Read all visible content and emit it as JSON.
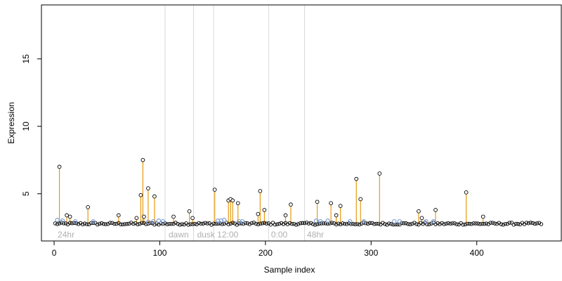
{
  "chart_data": {
    "type": "scatter",
    "title": "",
    "xlabel": "Sample index",
    "ylabel": "Expression",
    "xlim": [
      -12,
      480
    ],
    "ylim": [
      1.5,
      19
    ],
    "x_ticks": [
      0,
      100,
      200,
      300,
      400
    ],
    "y_ticks": [
      5,
      10,
      15
    ],
    "grid": false,
    "legend": "none",
    "baseline": 2.8,
    "colors": {
      "stem": "#e69a10",
      "point_outline": "#000000",
      "blue_point": "#7fa0d8",
      "annotation": "#b0b0b0",
      "divider": "#d9d9d9",
      "axis": "#000000"
    },
    "sections": [
      {
        "label": "24hr",
        "x": 2
      },
      {
        "label": "dawn",
        "x": 107
      },
      {
        "label": "dusk",
        "x": 134
      },
      {
        "label": "12:00",
        "x": 153
      },
      {
        "label": "0:00",
        "x": 204
      },
      {
        "label": "48hr",
        "x": 238
      }
    ],
    "dividers": [
      105,
      132,
      151,
      203,
      237
    ],
    "highlighted_points": [
      {
        "x": 5,
        "y": 7.0
      },
      {
        "x": 12,
        "y": 3.4
      },
      {
        "x": 15,
        "y": 3.3
      },
      {
        "x": 32,
        "y": 4.0
      },
      {
        "x": 61,
        "y": 3.4
      },
      {
        "x": 78,
        "y": 3.2
      },
      {
        "x": 82,
        "y": 4.9
      },
      {
        "x": 84,
        "y": 7.5
      },
      {
        "x": 85,
        "y": 3.3
      },
      {
        "x": 89,
        "y": 5.4
      },
      {
        "x": 95,
        "y": 4.8
      },
      {
        "x": 113,
        "y": 3.3
      },
      {
        "x": 128,
        "y": 3.7
      },
      {
        "x": 131,
        "y": 3.2
      },
      {
        "x": 152,
        "y": 5.3
      },
      {
        "x": 165,
        "y": 4.5
      },
      {
        "x": 167,
        "y": 4.6
      },
      {
        "x": 169,
        "y": 4.5
      },
      {
        "x": 174,
        "y": 4.3
      },
      {
        "x": 193,
        "y": 3.5
      },
      {
        "x": 195,
        "y": 5.2
      },
      {
        "x": 199,
        "y": 3.8
      },
      {
        "x": 219,
        "y": 3.4
      },
      {
        "x": 224,
        "y": 4.2
      },
      {
        "x": 249,
        "y": 4.4
      },
      {
        "x": 262,
        "y": 4.3
      },
      {
        "x": 267,
        "y": 3.4
      },
      {
        "x": 271,
        "y": 4.1
      },
      {
        "x": 286,
        "y": 6.1
      },
      {
        "x": 290,
        "y": 4.6
      },
      {
        "x": 308,
        "y": 6.5
      },
      {
        "x": 345,
        "y": 3.7
      },
      {
        "x": 348,
        "y": 3.2
      },
      {
        "x": 361,
        "y": 3.8
      },
      {
        "x": 390,
        "y": 5.1
      },
      {
        "x": 406,
        "y": 3.3
      }
    ],
    "blue_points": [
      {
        "x": 3,
        "y": 3.05
      },
      {
        "x": 8,
        "y": 3.0
      },
      {
        "x": 20,
        "y": 2.95
      },
      {
        "x": 37,
        "y": 2.95
      },
      {
        "x": 89,
        "y": 2.9
      },
      {
        "x": 94,
        "y": 2.95
      },
      {
        "x": 99,
        "y": 3.0
      },
      {
        "x": 103,
        "y": 2.95
      },
      {
        "x": 155,
        "y": 3.0
      },
      {
        "x": 158,
        "y": 3.0
      },
      {
        "x": 161,
        "y": 3.05
      },
      {
        "x": 175,
        "y": 2.95
      },
      {
        "x": 178,
        "y": 2.95
      },
      {
        "x": 248,
        "y": 3.0
      },
      {
        "x": 252,
        "y": 2.95
      },
      {
        "x": 259,
        "y": 3.0
      },
      {
        "x": 280,
        "y": 2.95
      },
      {
        "x": 293,
        "y": 2.95
      },
      {
        "x": 322,
        "y": 2.95
      },
      {
        "x": 327,
        "y": 2.95
      },
      {
        "x": 352,
        "y": 2.95
      },
      {
        "x": 359,
        "y": 2.95
      }
    ],
    "base_points": {
      "x_start": 1,
      "x_end": 462,
      "step": 2,
      "y_center": 2.78,
      "jitter": 0.08
    }
  }
}
